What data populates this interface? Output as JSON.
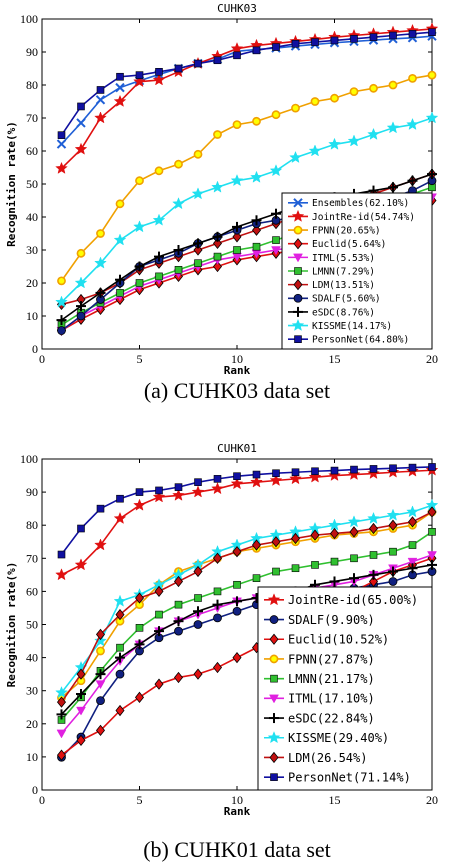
{
  "captions": [
    "(a) CUHK03 data set",
    "(b) CUHK01 data set"
  ],
  "chart_data": [
    {
      "type": "line",
      "title": "CUHK03",
      "xlabel": "Rank",
      "ylabel": "Recognition rate(%)",
      "xlim": [
        0,
        20
      ],
      "ylim": [
        0,
        100
      ],
      "xticks": [
        "0",
        "5",
        "10",
        "15",
        "20"
      ],
      "yticks": [
        "0",
        "10",
        "20",
        "30",
        "40",
        "50",
        "60",
        "70",
        "80",
        "90",
        "100"
      ],
      "grid": false,
      "legend_position": "bottom-right",
      "x": [
        1,
        2,
        3,
        4,
        5,
        6,
        7,
        8,
        9,
        10,
        11,
        12,
        13,
        14,
        15,
        16,
        17,
        18,
        19,
        20
      ],
      "series": [
        {
          "name": "Ensembles(62.10%)",
          "color": "#1f5fd6",
          "marker": "x",
          "values": [
            62.1,
            68.5,
            75.5,
            79.2,
            81.3,
            83.2,
            85.0,
            86.5,
            87.8,
            90.2,
            90.8,
            91.2,
            91.8,
            92.3,
            92.8,
            93.2,
            93.6,
            94.0,
            94.3,
            94.8
          ]
        },
        {
          "name": "JointRe-id(54.74%)",
          "color": "#e01010",
          "marker": "star",
          "values": [
            54.7,
            60.5,
            70.0,
            75.0,
            81.0,
            81.5,
            84.0,
            86.5,
            88.7,
            91.0,
            92.0,
            92.6,
            93.2,
            93.8,
            94.5,
            95.0,
            95.5,
            96.0,
            96.5,
            97.0
          ]
        },
        {
          "name": "FPNN(20.65%)",
          "color": "#f0a000",
          "marker": "circle-open",
          "values": [
            20.65,
            29.0,
            35.0,
            44.0,
            51.0,
            54.0,
            56.0,
            59.0,
            65.0,
            68.0,
            69.0,
            71.0,
            73.0,
            75.0,
            76.0,
            78.0,
            79.0,
            80.0,
            82.0,
            83.0
          ]
        },
        {
          "name": "Euclid(5.64%)",
          "color": "#e01010",
          "marker": "diamond",
          "values": [
            5.64,
            9.0,
            12.0,
            15.0,
            18.0,
            20.0,
            22.0,
            24.0,
            25.0,
            27.0,
            28.0,
            29.0,
            30.0,
            32.0,
            34.0,
            36.0,
            38.0,
            40.0,
            42.0,
            45.0
          ]
        },
        {
          "name": "ITML(5.53%)",
          "color": "#e020e0",
          "marker": "triangle-down",
          "values": [
            5.53,
            10.0,
            13.0,
            16.0,
            19.0,
            21.0,
            23.0,
            25.0,
            27.0,
            28.0,
            29.0,
            30.0,
            31.0,
            33.0,
            35.0,
            37.0,
            39.0,
            41.0,
            43.0,
            46.0
          ]
        },
        {
          "name": "LMNN(7.29%)",
          "color": "#30c030",
          "marker": "square",
          "values": [
            7.29,
            11.0,
            14.0,
            17.0,
            20.0,
            22.0,
            24.0,
            26.0,
            28.0,
            30.0,
            31.0,
            33.0,
            35.0,
            37.0,
            39.0,
            41.0,
            43.0,
            45.0,
            47.0,
            49.0
          ]
        },
        {
          "name": "LDM(13.51%)",
          "color": "#c01010",
          "marker": "diamond",
          "values": [
            13.51,
            15.0,
            17.0,
            20.0,
            24.0,
            26.0,
            28.0,
            30.0,
            32.0,
            34.0,
            36.0,
            38.0,
            40.0,
            42.0,
            44.0,
            45.0,
            47.0,
            49.0,
            51.0,
            53.0
          ]
        },
        {
          "name": "SDALF(5.60%)",
          "color": "#102080",
          "marker": "circle",
          "values": [
            5.6,
            10.0,
            15.0,
            20.0,
            25.0,
            27.0,
            29.0,
            32.0,
            34.0,
            36.0,
            38.0,
            39.0,
            40.0,
            41.0,
            42.0,
            43.0,
            45.0,
            46.0,
            48.0,
            51.0
          ]
        },
        {
          "name": "eSDC(8.76%)",
          "color": "#000000",
          "marker": "plus",
          "values": [
            8.76,
            13.0,
            17.0,
            21.0,
            25.0,
            28.0,
            30.0,
            32.0,
            34.0,
            37.0,
            39.0,
            41.0,
            43.0,
            45.0,
            46.0,
            47.0,
            48.0,
            49.0,
            51.0,
            53.0
          ]
        },
        {
          "name": "KISSME(14.17%)",
          "color": "#20e0f0",
          "marker": "star",
          "values": [
            14.17,
            20.0,
            26.0,
            33.0,
            37.0,
            39.0,
            44.0,
            47.0,
            49.0,
            51.0,
            52.0,
            54.0,
            58.0,
            60.0,
            62.0,
            63.0,
            65.0,
            67.0,
            68.0,
            70.0
          ]
        },
        {
          "name": "PersonNet(64.80%)",
          "color": "#1010a0",
          "marker": "square",
          "values": [
            64.8,
            73.5,
            78.5,
            82.5,
            83.0,
            84.0,
            85.0,
            86.5,
            87.5,
            89.0,
            90.5,
            91.5,
            92.5,
            93.0,
            93.5,
            94.0,
            94.5,
            95.0,
            95.5,
            96.0
          ]
        }
      ]
    },
    {
      "type": "line",
      "title": "CUHK01",
      "xlabel": "Rank",
      "ylabel": "Recognition rate(%)",
      "xlim": [
        0,
        20
      ],
      "ylim": [
        0,
        100
      ],
      "xticks": [
        "0",
        "5",
        "10",
        "15",
        "20"
      ],
      "yticks": [
        "0",
        "10",
        "20",
        "30",
        "40",
        "50",
        "60",
        "70",
        "80",
        "90",
        "100"
      ],
      "grid": false,
      "legend_position": "bottom-right",
      "x": [
        1,
        2,
        3,
        4,
        5,
        6,
        7,
        8,
        9,
        10,
        11,
        12,
        13,
        14,
        15,
        16,
        17,
        18,
        19,
        20
      ],
      "series": [
        {
          "name": "JointRe-id(65.00%)",
          "color": "#e01010",
          "marker": "star",
          "values": [
            65.0,
            68.0,
            74.0,
            82.0,
            86.0,
            88.5,
            89.0,
            90.0,
            91.0,
            92.5,
            93.0,
            93.5,
            94.0,
            94.5,
            95.0,
            95.3,
            95.6,
            96.0,
            96.3,
            96.6
          ]
        },
        {
          "name": "SDALF(9.90%)",
          "color": "#102080",
          "marker": "circle",
          "values": [
            9.9,
            16.0,
            27.0,
            35.0,
            42.0,
            46.0,
            48.0,
            50.0,
            52.0,
            54.0,
            56.0,
            57.0,
            58.0,
            59.0,
            60.0,
            61.0,
            62.0,
            63.0,
            65.0,
            66.0
          ]
        },
        {
          "name": "Euclid(10.52%)",
          "color": "#e01010",
          "marker": "diamond",
          "values": [
            10.52,
            15.0,
            18.0,
            24.0,
            28.0,
            32.0,
            34.0,
            35.0,
            37.0,
            40.0,
            43.0,
            46.0,
            50.0,
            54.0,
            57.0,
            60.0,
            63.0,
            66.0,
            68.0,
            70.0
          ]
        },
        {
          "name": "FPNN(27.87%)",
          "color": "#f0a000",
          "marker": "circle-open",
          "values": [
            27.87,
            33.0,
            42.0,
            51.0,
            56.0,
            62.0,
            66.0,
            68.0,
            70.0,
            72.0,
            73.0,
            74.0,
            75.0,
            76.0,
            77.0,
            77.5,
            78.0,
            79.0,
            80.0,
            84.0
          ]
        },
        {
          "name": "LMNN(21.17%)",
          "color": "#30c030",
          "marker": "square",
          "values": [
            21.17,
            28.0,
            36.0,
            43.0,
            49.0,
            53.0,
            56.0,
            58.0,
            60.0,
            62.0,
            64.0,
            66.0,
            67.0,
            68.0,
            69.0,
            70.0,
            71.0,
            72.0,
            74.0,
            78.0
          ]
        },
        {
          "name": "ITML(17.10%)",
          "color": "#e020e0",
          "marker": "triangle-down",
          "values": [
            17.1,
            24.0,
            32.0,
            39.0,
            44.0,
            48.0,
            51.0,
            53.0,
            55.0,
            57.0,
            58.0,
            59.0,
            60.0,
            61.0,
            62.0,
            63.0,
            65.0,
            67.0,
            69.0,
            71.0
          ]
        },
        {
          "name": "eSDC(22.84%)",
          "color": "#000000",
          "marker": "plus",
          "values": [
            22.84,
            29.0,
            35.0,
            40.0,
            44.0,
            48.0,
            51.0,
            54.0,
            56.0,
            57.0,
            58.0,
            59.0,
            60.0,
            62.0,
            63.0,
            64.0,
            65.0,
            66.0,
            67.0,
            68.0
          ]
        },
        {
          "name": "KISSME(29.40%)",
          "color": "#20e0f0",
          "marker": "star",
          "values": [
            29.4,
            37.0,
            45.0,
            57.0,
            59.0,
            62.0,
            65.0,
            68.0,
            72.0,
            74.0,
            76.0,
            77.0,
            78.0,
            79.0,
            80.0,
            81.0,
            82.0,
            83.0,
            84.0,
            86.0
          ]
        },
        {
          "name": "LDM(26.54%)",
          "color": "#c01010",
          "marker": "diamond",
          "values": [
            26.54,
            35.0,
            47.0,
            53.0,
            58.0,
            60.0,
            63.0,
            66.0,
            70.0,
            72.0,
            74.0,
            75.0,
            76.0,
            77.0,
            77.5,
            78.0,
            79.0,
            80.0,
            81.0,
            84.0
          ]
        },
        {
          "name": "PersonNet(71.14%)",
          "color": "#1010a0",
          "marker": "square",
          "values": [
            71.14,
            79.0,
            85.0,
            88.0,
            90.0,
            90.5,
            91.5,
            93.0,
            94.0,
            94.8,
            95.3,
            95.7,
            96.0,
            96.3,
            96.5,
            96.8,
            97.0,
            97.2,
            97.4,
            97.6
          ]
        }
      ]
    }
  ]
}
